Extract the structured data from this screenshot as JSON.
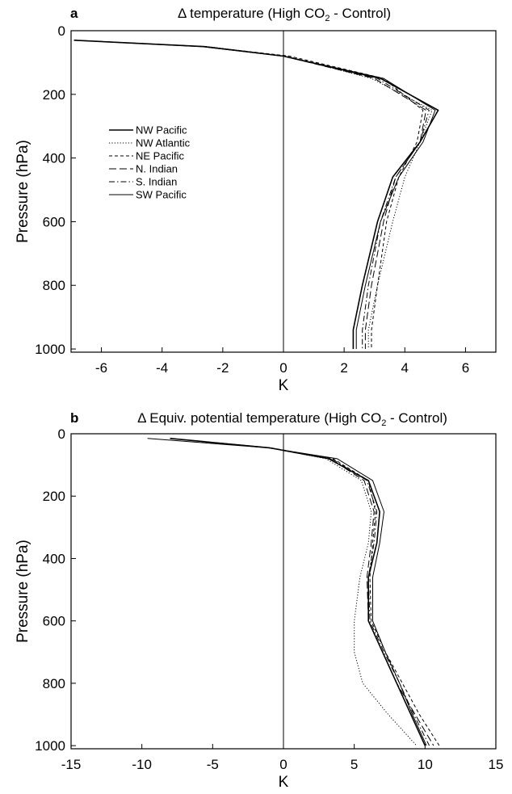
{
  "chart_data": [
    {
      "panel": "a",
      "type": "line",
      "title": "Δ temperature (High CO₂ - Control)",
      "xlabel": "K",
      "ylabel": "Pressure (hPa)",
      "xlim": [
        -7,
        7
      ],
      "ylim": [
        1010,
        0
      ],
      "x_ticks": [
        "-6",
        "-4",
        "-2",
        "0",
        "2",
        "4",
        "6"
      ],
      "y_ticks": [
        "0",
        "200",
        "400",
        "600",
        "800",
        "1000"
      ],
      "grid": false,
      "legend_position": "upper-left",
      "pressure_levels": [
        30,
        50,
        80,
        150,
        250,
        350,
        460,
        600,
        800,
        940,
        1000
      ],
      "series": [
        {
          "name": "NW Pacific",
          "style": "solid",
          "values": [
            -6.9,
            -2.6,
            0.0,
            3.2,
            5.1,
            4.5,
            3.6,
            3.1,
            2.6,
            2.3,
            2.3
          ]
        },
        {
          "name": "NW Atlantic",
          "style": "dotted",
          "values": [
            -6.9,
            -2.5,
            0.1,
            2.9,
            4.9,
            4.5,
            4.0,
            3.6,
            3.1,
            2.8,
            2.8
          ]
        },
        {
          "name": "NE Pacific",
          "style": "dashed",
          "values": [
            -6.9,
            -2.6,
            0.2,
            3.3,
            4.6,
            4.4,
            3.8,
            3.4,
            3.1,
            2.9,
            2.9
          ]
        },
        {
          "name": "N. Indian",
          "style": "long-dash",
          "values": [
            -6.9,
            -2.6,
            0.0,
            3.0,
            4.7,
            4.5,
            3.7,
            3.3,
            2.9,
            2.7,
            2.7
          ]
        },
        {
          "name": "S. Indian",
          "style": "dash-dot",
          "values": [
            -6.9,
            -2.6,
            0.0,
            3.1,
            4.8,
            4.5,
            3.7,
            3.2,
            2.8,
            2.6,
            2.6
          ]
        },
        {
          "name": "SW Pacific",
          "style": "solid-thin",
          "values": [
            -6.9,
            -2.7,
            0.0,
            3.3,
            5.0,
            4.6,
            3.8,
            3.2,
            2.7,
            2.4,
            2.4
          ]
        }
      ]
    },
    {
      "panel": "b",
      "type": "line",
      "title": "Δ Equiv. potential temperature (High CO₂ - Control)",
      "xlabel": "K",
      "ylabel": "Pressure (hPa)",
      "xlim": [
        -15,
        15
      ],
      "ylim": [
        1010,
        0
      ],
      "x_ticks": [
        "-15",
        "-10",
        "-5",
        "0",
        "5",
        "10",
        "15"
      ],
      "y_ticks": [
        "0",
        "200",
        "400",
        "600",
        "800",
        "1000"
      ],
      "grid": false,
      "pressure_levels": [
        15,
        45,
        80,
        150,
        250,
        350,
        460,
        600,
        700,
        800,
        900,
        1000
      ],
      "series": [
        {
          "name": "NW Pacific",
          "style": "solid",
          "values": [
            -8.0,
            -1.0,
            3.2,
            6.0,
            6.8,
            6.6,
            6.0,
            6.0,
            7.0,
            8.0,
            9.0,
            10.0
          ]
        },
        {
          "name": "NW Atlantic",
          "style": "dotted",
          "values": [
            -8.0,
            -1.0,
            3.0,
            5.5,
            6.2,
            6.0,
            5.4,
            5.0,
            5.0,
            5.6,
            7.4,
            9.4
          ]
        },
        {
          "name": "NE Pacific",
          "style": "dashed",
          "values": [
            -8.0,
            -0.9,
            3.5,
            6.0,
            6.5,
            6.3,
            6.1,
            6.2,
            7.2,
            8.4,
            9.6,
            11.0
          ]
        },
        {
          "name": "N. Indian",
          "style": "long-dash",
          "values": [
            -8.0,
            -1.0,
            3.3,
            5.7,
            6.4,
            6.2,
            5.9,
            6.0,
            7.0,
            8.0,
            9.3,
            10.6
          ]
        },
        {
          "name": "S. Indian",
          "style": "dash-dot",
          "values": [
            -8.0,
            -1.0,
            3.4,
            5.9,
            6.6,
            6.4,
            6.0,
            6.1,
            7.1,
            8.2,
            9.2,
            10.3
          ]
        },
        {
          "name": "SW Pacific",
          "style": "solid-thin",
          "values": [
            -9.6,
            -1.1,
            3.8,
            6.3,
            7.1,
            6.8,
            6.3,
            6.3,
            7.2,
            8.2,
            9.1,
            10.1
          ]
        }
      ]
    }
  ],
  "text": {
    "panel_a_letter": "a",
    "panel_a_title_prefix": "Δ temperature (High CO",
    "panel_a_title_sub": "2",
    "panel_a_title_suffix": " - Control)",
    "panel_b_letter": "b",
    "panel_b_title_prefix": "Δ Equiv. potential temperature (High CO",
    "panel_b_title_sub": "2",
    "panel_b_title_suffix": " - Control)"
  }
}
